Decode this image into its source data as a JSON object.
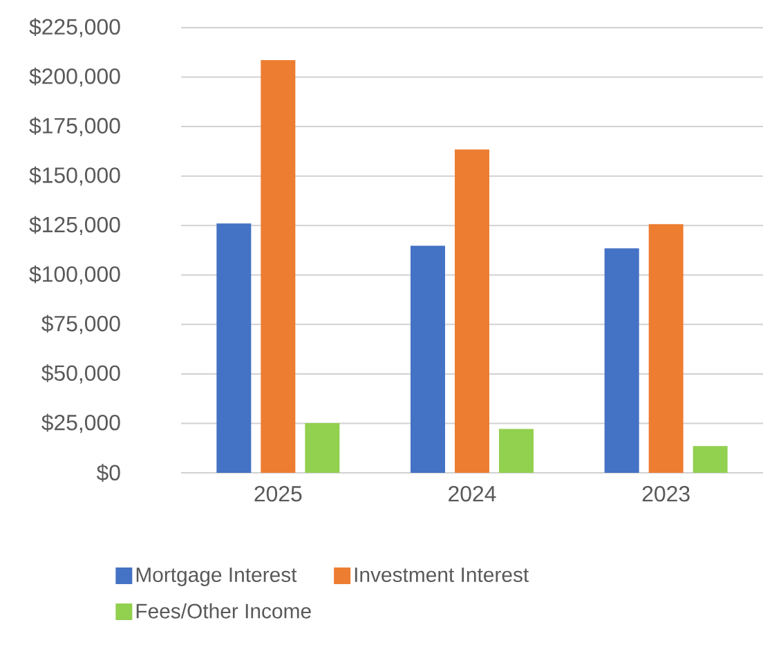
{
  "chart_data": {
    "type": "bar",
    "categories": [
      "2025",
      "2024",
      "2023"
    ],
    "series": [
      {
        "name": "Mortgage Interest",
        "color": "#4472c4",
        "values": [
          126000,
          114800,
          113500
        ]
      },
      {
        "name": "Investment Interest",
        "color": "#ed7d31",
        "values": [
          208600,
          163400,
          125700
        ]
      },
      {
        "name": "Fees/Other Income",
        "color": "#92d050",
        "values": [
          25200,
          22200,
          13500
        ]
      }
    ],
    "ylim": [
      0,
      225000
    ],
    "yticks": [
      {
        "value": 0,
        "label": "$0"
      },
      {
        "value": 25000,
        "label": "$25,000"
      },
      {
        "value": 50000,
        "label": "$50,000"
      },
      {
        "value": 75000,
        "label": "$75,000"
      },
      {
        "value": 100000,
        "label": "$100,000"
      },
      {
        "value": 125000,
        "label": "$125,000"
      },
      {
        "value": 150000,
        "label": "$150,000"
      },
      {
        "value": 175000,
        "label": "$175,000"
      },
      {
        "value": 200000,
        "label": "$200,000"
      },
      {
        "value": 225000,
        "label": "$225,000"
      }
    ],
    "grid": "y",
    "legend": "bottom"
  }
}
